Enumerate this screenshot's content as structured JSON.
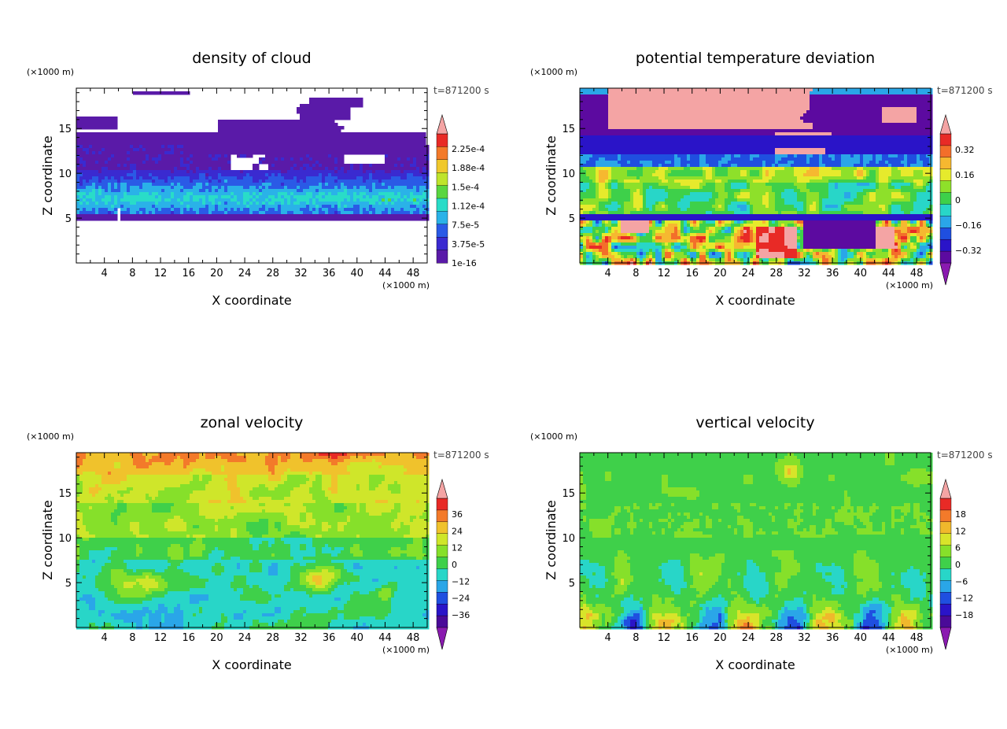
{
  "chart_data": [
    {
      "type": "heatmap",
      "title": "density of cloud",
      "xlabel": "X coordinate",
      "ylabel": "Z coordinate",
      "x_unit": "(×1000 m)",
      "y_unit": "(×1000 m)",
      "time_label": "t=871200 s",
      "xlim": [
        0,
        50
      ],
      "ylim": [
        0,
        19.5
      ],
      "x_ticks": [
        "4",
        "8",
        "12",
        "16",
        "20",
        "24",
        "28",
        "32",
        "36",
        "40",
        "44",
        "48"
      ],
      "y_ticks": [
        "5",
        "10",
        "15"
      ],
      "colorbar_labels": [
        "2.25e-4",
        "1.88e-4",
        "1.5e-4",
        "1.12e-4",
        "7.5e-5",
        "3.75e-5",
        "1e-16"
      ],
      "scheme": "cloud"
    },
    {
      "type": "heatmap",
      "title": "potential temperature deviation",
      "xlabel": "X coordinate",
      "ylabel": "Z coordinate",
      "x_unit": "(×1000 m)",
      "y_unit": "(×1000 m)",
      "time_label": "t=871200 s",
      "xlim": [
        0,
        50
      ],
      "ylim": [
        0,
        19.5
      ],
      "x_ticks": [
        "4",
        "8",
        "12",
        "16",
        "20",
        "24",
        "28",
        "32",
        "36",
        "40",
        "44",
        "48"
      ],
      "y_ticks": [
        "5",
        "10",
        "15"
      ],
      "colorbar_labels": [
        "0.32",
        "0.16",
        "0",
        "−0.16",
        "−0.32"
      ],
      "scheme": "theta"
    },
    {
      "type": "heatmap",
      "title": "zonal velocity",
      "xlabel": "X coordinate",
      "ylabel": "Z coordinate",
      "x_unit": "(×1000 m)",
      "y_unit": "(×1000 m)",
      "time_label": "t=871200 s",
      "xlim": [
        0,
        50
      ],
      "ylim": [
        0,
        19.5
      ],
      "x_ticks": [
        "4",
        "8",
        "12",
        "16",
        "20",
        "24",
        "28",
        "32",
        "36",
        "40",
        "44",
        "48"
      ],
      "y_ticks": [
        "5",
        "10",
        "15"
      ],
      "colorbar_labels": [
        "36",
        "24",
        "12",
        "0",
        "−12",
        "−24",
        "−36"
      ],
      "scheme": "zonal"
    },
    {
      "type": "heatmap",
      "title": "vertical velocity",
      "xlabel": "X coordinate",
      "ylabel": "Z coordinate",
      "x_unit": "(×1000 m)",
      "y_unit": "(×1000 m)",
      "time_label": "t=871200 s",
      "xlim": [
        0,
        50
      ],
      "ylim": [
        0,
        19.5
      ],
      "x_ticks": [
        "4",
        "8",
        "12",
        "16",
        "20",
        "24",
        "28",
        "32",
        "36",
        "40",
        "44",
        "48"
      ],
      "y_ticks": [
        "5",
        "10",
        "15"
      ],
      "colorbar_labels": [
        "18",
        "12",
        "6",
        "0",
        "−6",
        "−12",
        "−18"
      ],
      "scheme": "vertical"
    }
  ],
  "colors": {
    "cloud_background": "#ffffff",
    "cloud_base": "#5a1aa8",
    "theta_background": "#7a14b8",
    "theta_warm": "#f4a4a4",
    "field_green": "#3fd04a",
    "field_yellow": "#e6ea2c",
    "field_cyan": "#27d8d2",
    "field_blue": "#1d3ddc"
  }
}
